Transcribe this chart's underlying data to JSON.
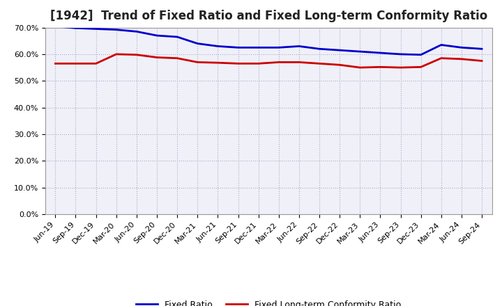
{
  "title": "[1942]  Trend of Fixed Ratio and Fixed Long-term Conformity Ratio",
  "labels": [
    "Jun-19",
    "Sep-19",
    "Dec-19",
    "Mar-20",
    "Jun-20",
    "Sep-20",
    "Dec-20",
    "Mar-21",
    "Jun-21",
    "Sep-21",
    "Dec-21",
    "Mar-22",
    "Jun-22",
    "Sep-22",
    "Dec-22",
    "Mar-23",
    "Jun-23",
    "Sep-23",
    "Dec-23",
    "Mar-24",
    "Jun-24",
    "Sep-24"
  ],
  "fixed_ratio": [
    70.5,
    69.8,
    69.5,
    69.2,
    68.5,
    67.0,
    66.5,
    64.0,
    63.0,
    62.5,
    62.5,
    62.5,
    63.0,
    62.0,
    61.5,
    61.0,
    60.5,
    60.0,
    59.8,
    63.5,
    62.5,
    62.0
  ],
  "fixed_lt_ratio": [
    56.5,
    56.5,
    56.5,
    60.0,
    59.8,
    58.8,
    58.5,
    57.0,
    56.8,
    56.5,
    56.5,
    57.0,
    57.0,
    56.5,
    56.0,
    55.0,
    55.2,
    55.0,
    55.2,
    58.5,
    58.2,
    57.5
  ],
  "fixed_ratio_color": "#0000CC",
  "fixed_lt_ratio_color": "#CC0000",
  "ylim": [
    0,
    70
  ],
  "yticks": [
    0.0,
    10.0,
    20.0,
    30.0,
    40.0,
    50.0,
    60.0,
    70.0
  ],
  "background_color": "#FFFFFF",
  "plot_bg_color": "#F0F0F8",
  "grid_color": "#AAAACC",
  "title_fontsize": 12,
  "tick_fontsize": 8,
  "legend_fixed": "Fixed Ratio",
  "legend_lt": "Fixed Long-term Conformity Ratio"
}
